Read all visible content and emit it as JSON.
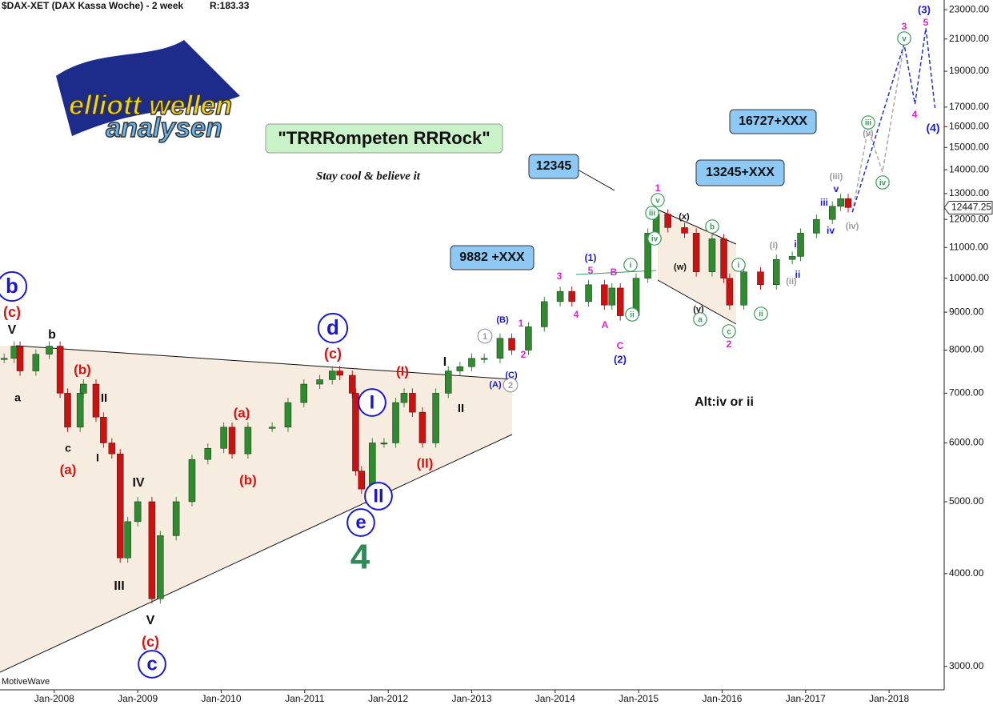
{
  "header": {
    "title": "$DAX-XET (DAX Kassa Woche) - 2 week",
    "ratio": "R:183.33",
    "watermark": "MotiveWave"
  },
  "logo": {
    "line1": "elliott wellen",
    "line2": "analysen"
  },
  "banner": {
    "title": "\"TRRRompeten RRRock\"",
    "subtitle": "Stay cool & believe it"
  },
  "boxes": [
    "12345",
    "9882 +XXX",
    "13245+XXX",
    "16727+XXX"
  ],
  "chart_data": {
    "type": "candlestick",
    "log_scale": true,
    "xlim": [
      2007.35,
      2018.66
    ],
    "ylim": [
      2790,
      23700
    ],
    "xticks": [
      {
        "value": 2008,
        "label": "Jan-2008"
      },
      {
        "value": 2009,
        "label": "Jan-2009"
      },
      {
        "value": 2010,
        "label": "Jan-2010"
      },
      {
        "value": 2011,
        "label": "Jan-2011"
      },
      {
        "value": 2012,
        "label": "Jan-2012"
      },
      {
        "value": 2013,
        "label": "Jan-2013"
      },
      {
        "value": 2014,
        "label": "Jan-2014"
      },
      {
        "value": 2015,
        "label": "Jan-2015"
      },
      {
        "value": 2016,
        "label": "Jan-2016"
      },
      {
        "value": 2017,
        "label": "Jan-2017"
      },
      {
        "value": 2018,
        "label": "Jan-2018"
      }
    ],
    "yticks": [
      {
        "value": 3000,
        "label": "3000.00"
      },
      {
        "value": 4000,
        "label": "4000.00"
      },
      {
        "value": 5000,
        "label": "5000.00"
      },
      {
        "value": 6000,
        "label": "6000.00"
      },
      {
        "value": 7000,
        "label": "7000.00"
      },
      {
        "value": 8000,
        "label": "8000.00"
      },
      {
        "value": 9000,
        "label": "9000.00"
      },
      {
        "value": 10000,
        "label": "10000.00"
      },
      {
        "value": 11000,
        "label": "11000.00"
      },
      {
        "value": 12000,
        "label": "12000.00"
      },
      {
        "value": 13000,
        "label": "13000.00"
      },
      {
        "value": 14000,
        "label": "14000.00"
      },
      {
        "value": 15000,
        "label": "15000.00"
      },
      {
        "value": 16000,
        "label": "16000.00"
      },
      {
        "value": 17000,
        "label": "17000.00"
      },
      {
        "value": 19000,
        "label": "19000.00"
      },
      {
        "value": 21000,
        "label": "21000.00"
      },
      {
        "value": 23000,
        "label": "23000.00"
      }
    ],
    "up_color": "#2e8b2e",
    "down_color": "#cc1111",
    "x": [
      2007.4,
      2007.52,
      2007.59,
      2007.78,
      2007.94,
      2008.07,
      2008.16,
      2008.31,
      2008.35,
      2008.5,
      2008.59,
      2008.69,
      2008.79,
      2008.88,
      2009.0,
      2009.17,
      2009.27,
      2009.46,
      2009.65,
      2009.84,
      2010.03,
      2010.13,
      2010.32,
      2010.61,
      2010.8,
      2010.99,
      2011.18,
      2011.33,
      2011.42,
      2011.57,
      2011.61,
      2011.68,
      2011.81,
      2011.95,
      2012.09,
      2012.19,
      2012.29,
      2012.41,
      2012.57,
      2012.72,
      2012.86,
      2013.0,
      2013.15,
      2013.34,
      2013.48,
      2013.68,
      2013.87,
      2014.06,
      2014.2,
      2014.4,
      2014.59,
      2014.68,
      2014.78,
      2014.97,
      2015.11,
      2015.21,
      2015.35,
      2015.55,
      2015.69,
      2015.88,
      2016.02,
      2016.09,
      2016.26,
      2016.46,
      2016.65,
      2016.84,
      2016.94,
      2017.13,
      2017.32,
      2017.42,
      2017.51
    ],
    "values": [
      7800,
      8100,
      7500,
      7900,
      8100,
      7000,
      6300,
      7000,
      7200,
      6500,
      6000,
      5800,
      4200,
      4700,
      5000,
      3700,
      4500,
      5000,
      5700,
      5900,
      6300,
      5800,
      6300,
      6300,
      6800,
      7200,
      7300,
      7500,
      7400,
      7000,
      5500,
      5200,
      6000,
      6000,
      6800,
      7000,
      6600,
      6000,
      7000,
      7500,
      7600,
      7800,
      7800,
      8300,
      8000,
      8600,
      9300,
      9600,
      9300,
      9800,
      9200,
      9700,
      8900,
      10000,
      11500,
      12200,
      11700,
      11500,
      10200,
      11300,
      10000,
      9200,
      10200,
      9800,
      10600,
      10700,
      11500,
      12000,
      12500,
      12800,
      12450
    ],
    "last_price": 12447.25,
    "projections": [
      {
        "color": "#aaaaaa",
        "x": [
          2017.56,
          2017.75,
          2017.92,
          2018.18
        ],
        "values": [
          12270,
          15930,
          13900,
          20670
        ]
      },
      {
        "color": "#2233cc",
        "x": [
          2017.56,
          2018.18,
          2018.31,
          2018.44,
          2018.55
        ],
        "values": [
          12270,
          20670,
          17160,
          21720,
          16950
        ]
      }
    ],
    "wave_labels": [
      {
        "text": "b",
        "color": "#1a1acc",
        "circled": true
      },
      {
        "text": "(c)",
        "color": "#dd1111"
      },
      {
        "text": "V",
        "color": "#111111"
      },
      {
        "text": "b",
        "color": "#111111"
      },
      {
        "text": "a",
        "color": "#111111"
      },
      {
        "text": "(b)",
        "color": "#dd1111"
      },
      {
        "text": "II",
        "color": "#111111"
      },
      {
        "text": "c",
        "color": "#111111"
      },
      {
        "text": "(a)",
        "color": "#dd1111"
      },
      {
        "text": "I",
        "color": "#111111"
      },
      {
        "text": "IV",
        "color": "#111111"
      },
      {
        "text": "III",
        "color": "#111111"
      },
      {
        "text": "V",
        "color": "#111111"
      },
      {
        "text": "(c)",
        "color": "#dd1111"
      },
      {
        "text": "c",
        "color": "#1a1acc",
        "circled": true
      },
      {
        "text": "(a)",
        "color": "#dd1111"
      },
      {
        "text": "(b)",
        "color": "#dd1111"
      },
      {
        "text": "d",
        "color": "#1a1acc",
        "circled": true
      },
      {
        "text": "(c)",
        "color": "#dd1111"
      },
      {
        "text": "I",
        "color": "#1a1acc",
        "circled": true
      },
      {
        "text": "II",
        "color": "#1a1acc",
        "circled": true
      },
      {
        "text": "e",
        "color": "#1a1acc",
        "circled": true
      },
      {
        "text": "4",
        "color": "#2e8b57"
      },
      {
        "text": "(I)",
        "color": "#dd1111"
      },
      {
        "text": "(II)",
        "color": "#dd1111"
      },
      {
        "text": "I",
        "color": "#111111"
      },
      {
        "text": "II",
        "color": "#111111"
      },
      {
        "text": "1",
        "color": "#999999",
        "circled": true
      },
      {
        "text": "2",
        "color": "#999999",
        "circled": true
      },
      {
        "text": "(B)",
        "color": "#1a1acc"
      },
      {
        "text": "(C)",
        "color": "#1a1acc"
      },
      {
        "text": "(A)",
        "color": "#1a1acc"
      },
      {
        "text": "1",
        "color": "#dd22cc"
      },
      {
        "text": "2",
        "color": "#dd22cc"
      },
      {
        "text": "3",
        "color": "#dd22cc"
      },
      {
        "text": "4",
        "color": "#dd22cc"
      },
      {
        "text": "(1)",
        "color": "#1a1acc"
      },
      {
        "text": "5",
        "color": "#dd22cc"
      },
      {
        "text": "B",
        "color": "#dd22cc"
      },
      {
        "text": "A",
        "color": "#dd22cc"
      },
      {
        "text": "C",
        "color": "#dd22cc"
      },
      {
        "text": "(2)",
        "color": "#1a1acc"
      },
      {
        "text": "i",
        "color": "#3a9a5a",
        "circled": true
      },
      {
        "text": "ii",
        "color": "#3a9a5a",
        "circled": true
      },
      {
        "text": "1",
        "color": "#dd22cc"
      },
      {
        "text": "v",
        "color": "#3a9a5a",
        "circled": true
      },
      {
        "text": "iii",
        "color": "#3a9a5a",
        "circled": true
      },
      {
        "text": "iv",
        "color": "#3a9a5a",
        "circled": true
      },
      {
        "text": "(x)",
        "color": "#111111"
      },
      {
        "text": "(w)",
        "color": "#111111"
      },
      {
        "text": "(y)",
        "color": "#111111"
      },
      {
        "text": "b",
        "color": "#3a9a5a",
        "circled": true
      },
      {
        "text": "a",
        "color": "#3a9a5a",
        "circled": true
      },
      {
        "text": "c",
        "color": "#3a9a5a",
        "circled": true
      },
      {
        "text": "2",
        "color": "#dd22cc"
      },
      {
        "text": "i",
        "color": "#3a9a5a",
        "circled": true
      },
      {
        "text": "ii",
        "color": "#3a9a5a",
        "circled": true
      },
      {
        "text": "(i)",
        "color": "#999999"
      },
      {
        "text": "(ii)",
        "color": "#999999"
      },
      {
        "text": "i",
        "color": "#1a1acc"
      },
      {
        "text": "ii",
        "color": "#1a1acc"
      },
      {
        "text": "iii",
        "color": "#1a1acc"
      },
      {
        "text": "iv",
        "color": "#1a1acc"
      },
      {
        "text": "v",
        "color": "#1a1acc"
      },
      {
        "text": "(iii)",
        "color": "#999999"
      },
      {
        "text": "(iv)",
        "color": "#999999"
      },
      {
        "text": "iii",
        "color": "#3a9a5a",
        "circled": true
      },
      {
        "text": "(v)",
        "color": "#999999"
      },
      {
        "text": "iv",
        "color": "#3a9a5a",
        "circled": true
      },
      {
        "text": "3",
        "color": "#dd22cc"
      },
      {
        "text": "v",
        "color": "#3a9a5a",
        "circled": true
      },
      {
        "text": "4",
        "color": "#dd22cc"
      },
      {
        "text": "5",
        "color": "#dd22cc"
      },
      {
        "text": "(3)",
        "color": "#1a1acc"
      },
      {
        "text": "(4)",
        "color": "#1a1acc"
      },
      {
        "text": "Alt:iv or ii",
        "color": "#111111"
      }
    ]
  }
}
